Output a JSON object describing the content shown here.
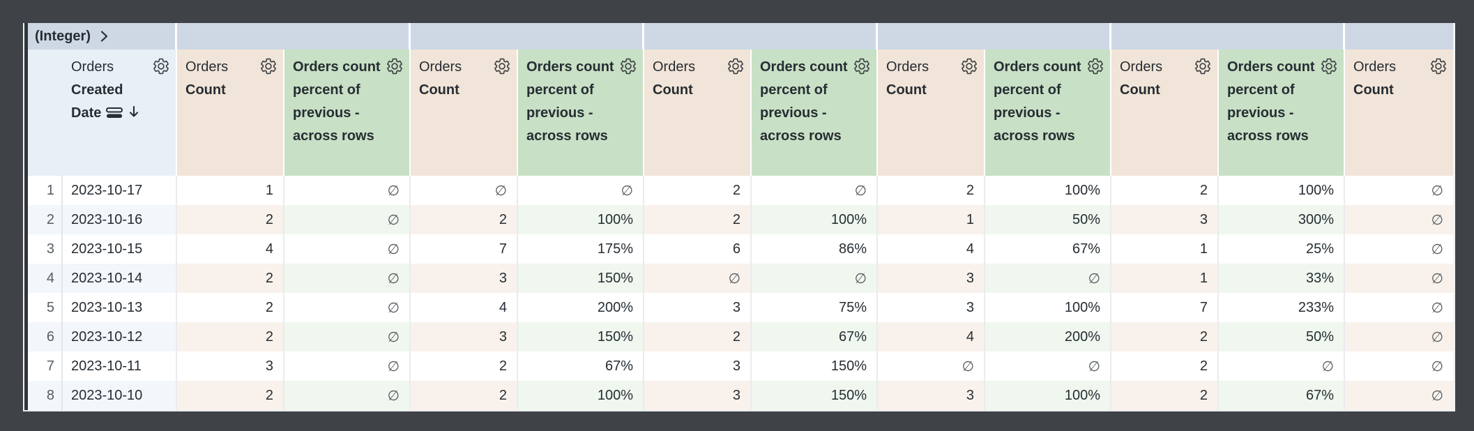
{
  "table": {
    "pivot_field_label": "(Integer)",
    "pivot_values": [
      "",
      "",
      "",
      "",
      "",
      ""
    ],
    "dimension_header": {
      "view": "Orders",
      "field": "Created Date"
    },
    "measure_header": {
      "view": "Orders",
      "field": "Count"
    },
    "calc_header": {
      "label": "Orders count percent of previous - across rows"
    },
    "null_symbol": "∅",
    "rows": [
      {
        "num": "1",
        "date": "2023-10-17",
        "values": [
          "1",
          "∅",
          "∅",
          "∅",
          "2",
          "∅",
          "2",
          "100%",
          "2",
          "100%",
          "∅"
        ]
      },
      {
        "num": "2",
        "date": "2023-10-16",
        "values": [
          "2",
          "∅",
          "2",
          "100%",
          "2",
          "100%",
          "1",
          "50%",
          "3",
          "300%",
          "∅"
        ]
      },
      {
        "num": "3",
        "date": "2023-10-15",
        "values": [
          "4",
          "∅",
          "7",
          "175%",
          "6",
          "86%",
          "4",
          "67%",
          "1",
          "25%",
          "∅"
        ]
      },
      {
        "num": "4",
        "date": "2023-10-14",
        "values": [
          "2",
          "∅",
          "3",
          "150%",
          "∅",
          "∅",
          "3",
          "∅",
          "1",
          "33%",
          "∅"
        ]
      },
      {
        "num": "5",
        "date": "2023-10-13",
        "values": [
          "2",
          "∅",
          "4",
          "200%",
          "3",
          "75%",
          "3",
          "100%",
          "7",
          "233%",
          "∅"
        ]
      },
      {
        "num": "6",
        "date": "2023-10-12",
        "values": [
          "2",
          "∅",
          "3",
          "150%",
          "2",
          "67%",
          "4",
          "200%",
          "2",
          "50%",
          "∅"
        ]
      },
      {
        "num": "7",
        "date": "2023-10-11",
        "values": [
          "3",
          "∅",
          "2",
          "67%",
          "3",
          "150%",
          "∅",
          "∅",
          "2",
          "∅",
          "∅"
        ]
      },
      {
        "num": "8",
        "date": "2023-10-10",
        "values": [
          "2",
          "∅",
          "2",
          "100%",
          "3",
          "150%",
          "3",
          "100%",
          "2",
          "67%",
          "∅"
        ]
      }
    ]
  },
  "colors": {
    "frame": "#3f4347",
    "pivot_band_bg": "#cdd8e4",
    "dimension_header_bg": "#e9eff6",
    "measure_header_bg": "#f1e4d8",
    "calc_header_bg": "#c8e0c5",
    "even_row_base": "#f3f6fa",
    "even_row_measure": "#f9f2ec",
    "even_row_calc": "#f0f7ef",
    "text": "#262d33",
    "null_text": "#54595e"
  }
}
